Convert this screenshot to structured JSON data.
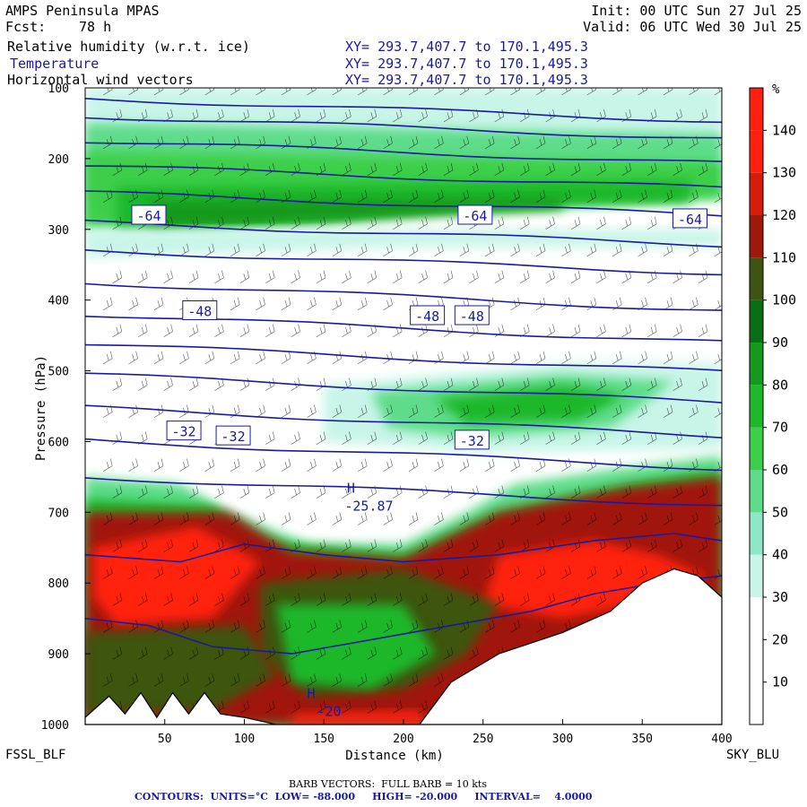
{
  "header": {
    "model": "AMPS Peninsula MPAS",
    "init": "Init: 00 UTC Sun 27 Jul 25",
    "fcst_label": "Fcst:",
    "fcst_value": "78 h",
    "valid": "Valid: 06 UTC Wed 30 Jul 25",
    "fields": [
      {
        "name": "Relative humidity (w.r.t. ice)",
        "xy": "XY= 293.7,407.7 to 170.1,495.3",
        "color": "#000000"
      },
      {
        "name": "Temperature",
        "xy": "XY= 293.7,407.7 to 170.1,495.3",
        "color": "#1a1aa0"
      },
      {
        "name": "Horizontal wind vectors",
        "xy": "XY= 293.7,407.7 to 170.1,495.3",
        "color": "#000000"
      }
    ]
  },
  "corners": {
    "left": "FSSL_BLF",
    "right": "SKY_BLU"
  },
  "footer": {
    "line1": "BARB VECTORS:  FULL BARB = 10 kts",
    "line2": "CONTOURS:  UNITS=°C  LOW= -88.000     HIGH= -20.000     INTERVAL=    4.0000"
  },
  "chart_data": {
    "type": "heatmap",
    "title": "Relative humidity (w.r.t. ice) / Temperature / Horizontal wind vectors",
    "xlabel": "Distance (km)",
    "ylabel": "Pressure (hPa)",
    "x_ticks": [
      50,
      100,
      150,
      200,
      250,
      300,
      350,
      400
    ],
    "xlim": [
      0,
      400
    ],
    "y_ticks": [
      100,
      200,
      300,
      400,
      500,
      600,
      700,
      800,
      900,
      1000
    ],
    "ylim": [
      1000,
      100
    ],
    "colorbar": {
      "unit": "%",
      "ticks": [
        10,
        20,
        30,
        40,
        50,
        60,
        70,
        80,
        90,
        100,
        110,
        120,
        130,
        140
      ],
      "colors": [
        "#ffffff",
        "#ffffff",
        "#ffffff",
        "#c8f5e8",
        "#8ee8c8",
        "#5fdc8a",
        "#3ecf4a",
        "#1fb82a",
        "#139a1c",
        "#0a6e14",
        "#3e5410",
        "#a01808",
        "#d81c0c",
        "#ff2010"
      ]
    },
    "temperature_contours": [
      {
        "label": "-64",
        "x": 40,
        "p": 280
      },
      {
        "label": "-64",
        "x": 245,
        "p": 280
      },
      {
        "label": "-64",
        "x": 380,
        "p": 285
      },
      {
        "label": "-48",
        "x": 72,
        "p": 415
      },
      {
        "label": "-48",
        "x": 215,
        "p": 422
      },
      {
        "label": "-48",
        "x": 243,
        "p": 422
      },
      {
        "label": "-32",
        "x": 62,
        "p": 585
      },
      {
        "label": "-32",
        "x": 93,
        "p": 592
      },
      {
        "label": "-32",
        "x": 243,
        "p": 598
      }
    ],
    "extrema": [
      {
        "label": "H",
        "value": "-25.87",
        "x": 167,
        "p": 685
      },
      {
        "label": "H",
        "value": "-20",
        "x": 142,
        "p": 975
      }
    ],
    "terrain_km_hpa": [
      [
        0,
        990
      ],
      [
        15,
        960
      ],
      [
        25,
        985
      ],
      [
        35,
        955
      ],
      [
        45,
        990
      ],
      [
        55,
        955
      ],
      [
        65,
        985
      ],
      [
        75,
        955
      ],
      [
        85,
        985
      ],
      [
        100,
        990
      ],
      [
        120,
        1000
      ],
      [
        210,
        1000
      ],
      [
        230,
        940
      ],
      [
        260,
        900
      ],
      [
        300,
        870
      ],
      [
        330,
        840
      ],
      [
        350,
        800
      ],
      [
        370,
        780
      ],
      [
        385,
        790
      ],
      [
        400,
        820
      ]
    ]
  }
}
